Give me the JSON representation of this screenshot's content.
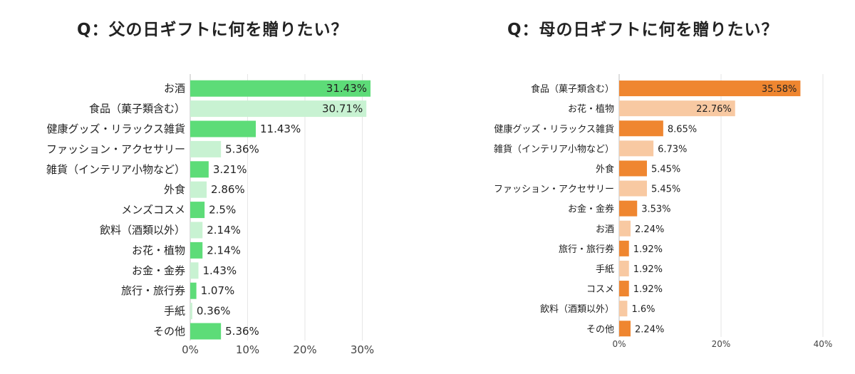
{
  "chart_data": [
    {
      "type": "bar",
      "orientation": "horizontal",
      "title": "Q：父の日ギフトに何を贈りたい？",
      "categories": [
        "お酒",
        "食品（菓子類含む）",
        "健康グッズ・リラックス雑貨",
        "ファッション・アクセサリー",
        "雑貨（インテリア小物など）",
        "外食",
        "メンズコスメ",
        "飲料（酒類以外）",
        "お花・植物",
        "お金・金券",
        "旅行・旅行券",
        "手紙",
        "その他"
      ],
      "values": [
        31.43,
        30.71,
        11.43,
        5.36,
        3.21,
        2.86,
        2.5,
        2.14,
        2.14,
        1.43,
        1.07,
        0.36,
        5.36
      ],
      "value_labels": [
        "31.43%",
        "30.71%",
        "11.43%",
        "5.36%",
        "3.21%",
        "2.86%",
        "2.5%",
        "2.14%",
        "2.14%",
        "1.43%",
        "1.07%",
        "0.36%",
        "5.36%"
      ],
      "xlim": [
        0,
        31.5
      ],
      "xticks": [
        0,
        10,
        20,
        30
      ],
      "xtick_labels": [
        "0%",
        "10%",
        "20%",
        "30%"
      ],
      "grid": true,
      "colors": {
        "dark": "#5ddc78",
        "light": "#c8f2d2"
      }
    },
    {
      "type": "bar",
      "orientation": "horizontal",
      "title": "Q：母の日ギフトに何を贈りたい？",
      "categories": [
        "食品（菓子類含む）",
        "お花・植物",
        "健康グッズ・リラックス雑貨",
        "雑貨（インテリア小物など）",
        "外食",
        "ファッション・アクセサリー",
        "お金・金券",
        "お酒",
        "旅行・旅行券",
        "手紙",
        "コスメ",
        "飲料（酒類以外）",
        "その他"
      ],
      "values": [
        35.58,
        22.76,
        8.65,
        6.73,
        5.45,
        5.45,
        3.53,
        2.24,
        1.92,
        1.92,
        1.92,
        1.6,
        2.24
      ],
      "value_labels": [
        "35.58%",
        "22.76%",
        "8.65%",
        "6.73%",
        "5.45%",
        "5.45%",
        "3.53%",
        "2.24%",
        "1.92%",
        "1.92%",
        "1.92%",
        "1.6%",
        "2.24%"
      ],
      "xlim": [
        0,
        40
      ],
      "xticks": [
        0,
        20,
        40
      ],
      "xtick_labels": [
        "0%",
        "20%",
        "40%"
      ],
      "grid": true,
      "colors": {
        "dark": "#ef8630",
        "light": "#f8c9a2"
      }
    }
  ]
}
